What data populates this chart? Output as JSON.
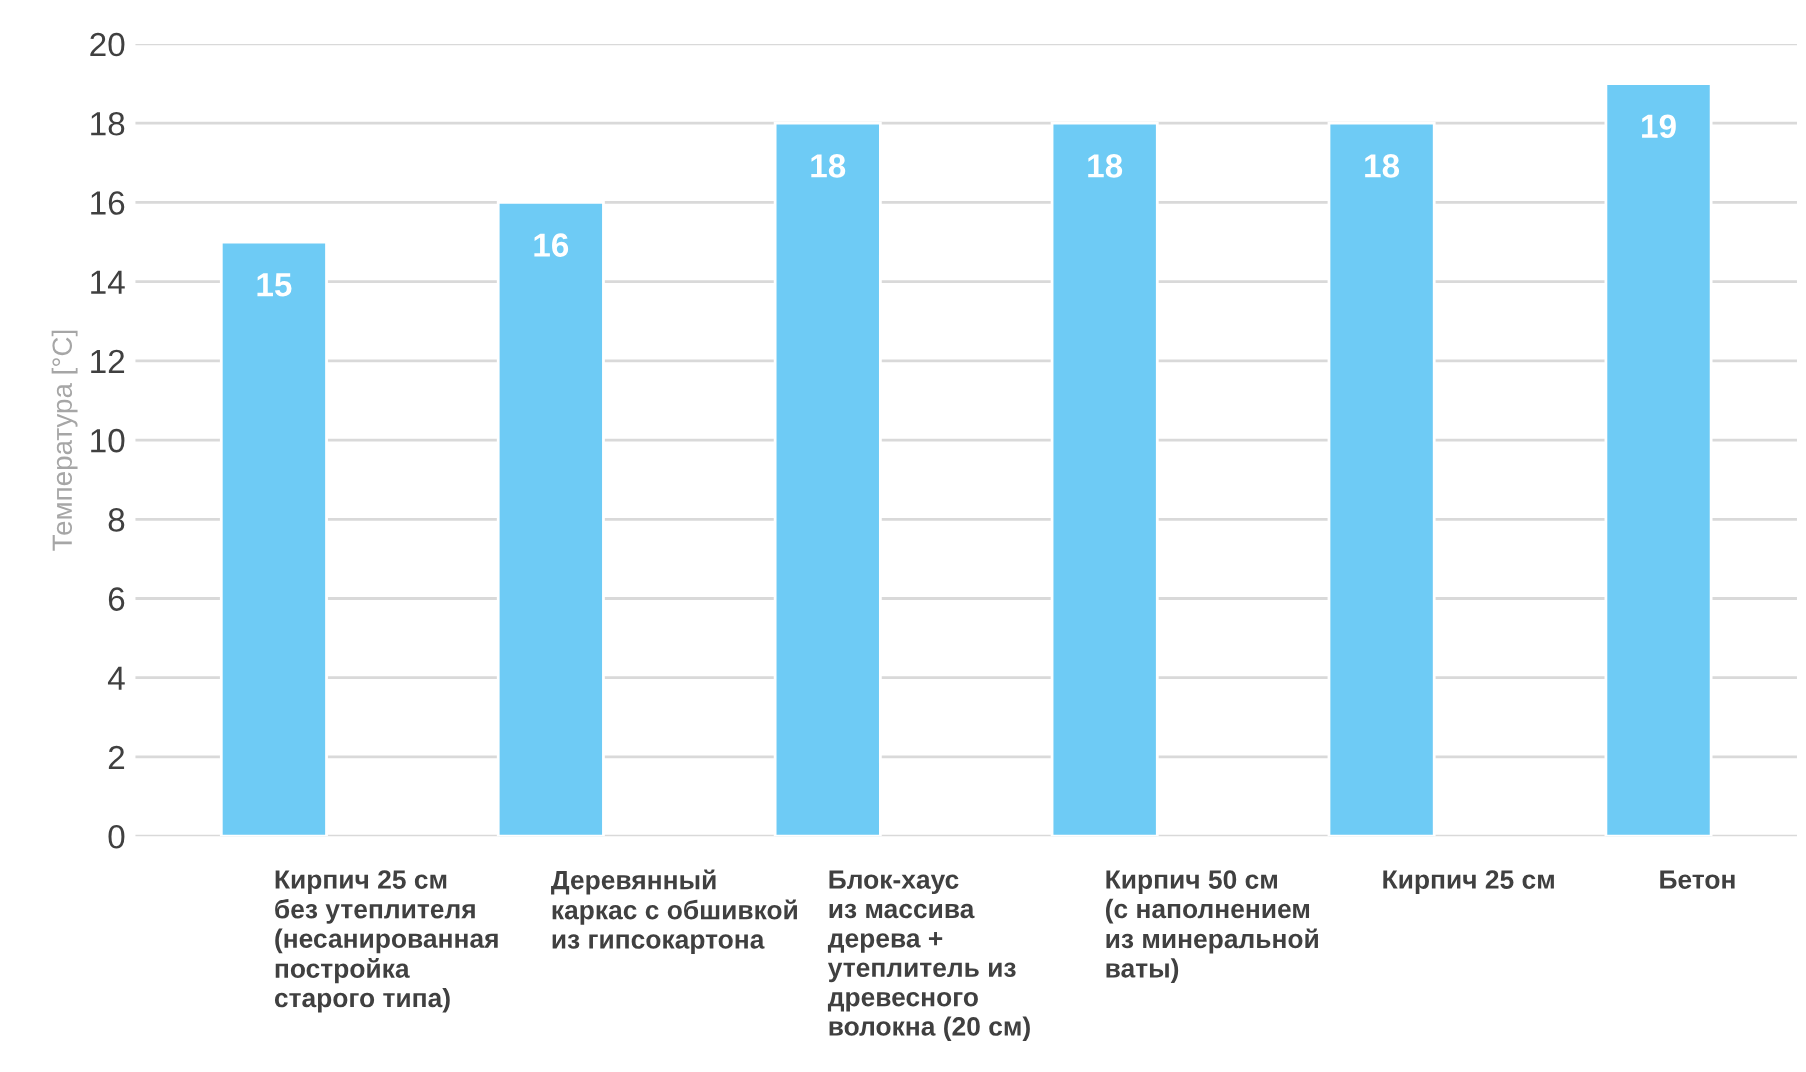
{
  "chart_data": {
    "type": "bar",
    "ylabel": "Температура [°C]",
    "categories": [
      "Кирпич 25 см\nбез утеплителя\n(несанированная\nпостройка\nстарого типа)",
      "Деревянный\nкаркас с обшивкой\nиз гипсокартона",
      "Блок-хаус\nиз массива\nдерева +\nутеплитель из\nдревесного\nволокна (20 см)",
      "Кирпич 50 см\n(с наполнением\nиз минеральной\nваты)",
      "Кирпич 25 см",
      "Бетон"
    ],
    "values": [
      15,
      16,
      18,
      18,
      18,
      19
    ],
    "color": "#6ecbf5",
    "data_labels": true,
    "ylim": [
      0,
      20
    ],
    "yticks": [
      0,
      2,
      4,
      6,
      8,
      10,
      12,
      14,
      16,
      18,
      20
    ],
    "grid": "y"
  }
}
